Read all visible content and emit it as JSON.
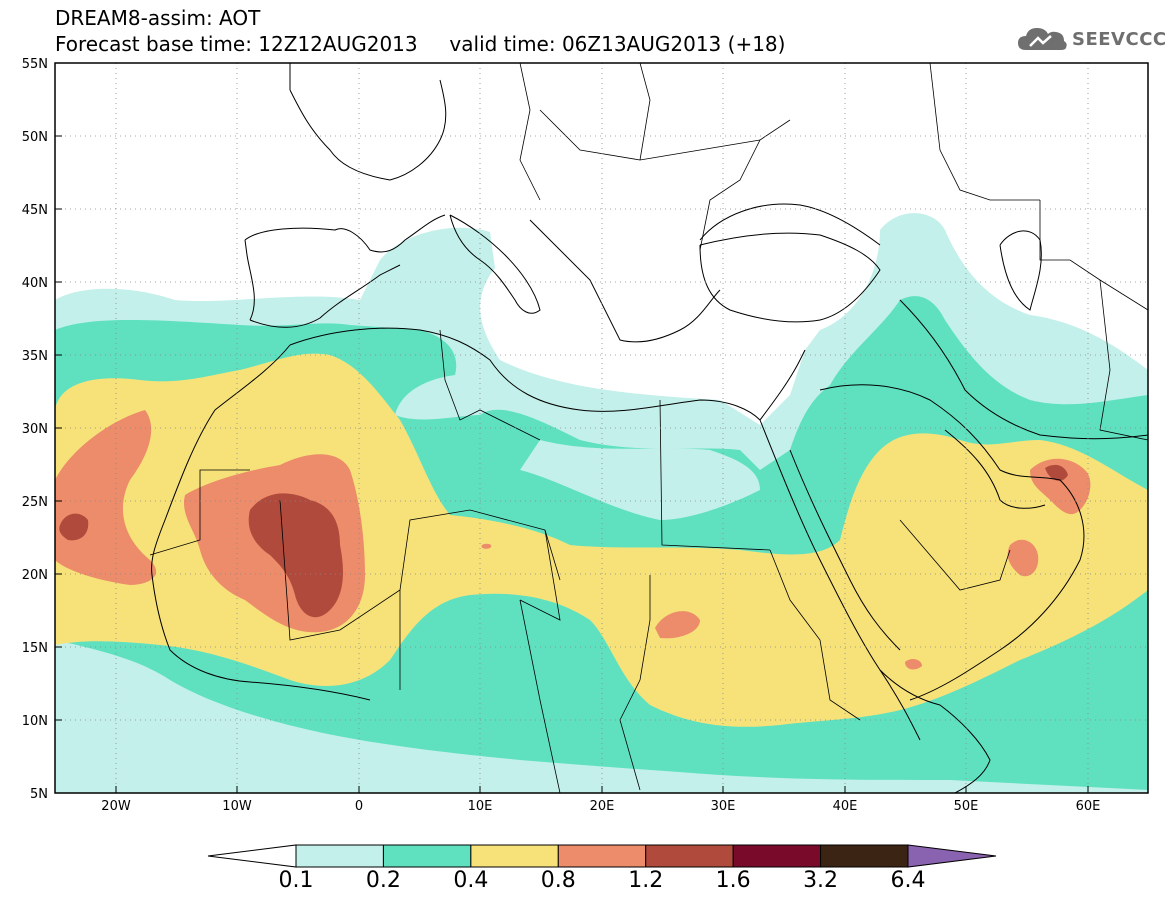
{
  "header": {
    "title": "DREAM8-assim: AOT",
    "base_time_label": "Forecast base time: 12Z12AUG2013",
    "valid_time_label": "valid time: 06Z13AUG2013 (+18)",
    "logo_text": "SEEVCCC",
    "logo_icon": "cloud-logo-icon"
  },
  "map": {
    "projection": "lat-lon",
    "lon_range": [
      -25,
      65
    ],
    "lat_range": [
      5,
      55
    ],
    "grid": "dotted",
    "lon_ticks": [
      "20W",
      "10W",
      "0",
      "10E",
      "20E",
      "30E",
      "40E",
      "50E",
      "60E"
    ],
    "lat_ticks": [
      "55N",
      "50N",
      "45N",
      "40N",
      "35N",
      "30N",
      "25N",
      "20N",
      "15N",
      "10N",
      "5N"
    ],
    "variable": "AOT"
  },
  "colorbar": {
    "levels": [
      "0.1",
      "0.2",
      "0.4",
      "0.8",
      "1.2",
      "1.6",
      "3.2",
      "6.4"
    ],
    "colors": [
      "#ffffff",
      "#c3f0ea",
      "#5fe1c0",
      "#f7e27a",
      "#ec8c6a",
      "#b04a3c",
      "#7a0a2a",
      "#3c2414",
      "#8a63b0"
    ]
  }
}
